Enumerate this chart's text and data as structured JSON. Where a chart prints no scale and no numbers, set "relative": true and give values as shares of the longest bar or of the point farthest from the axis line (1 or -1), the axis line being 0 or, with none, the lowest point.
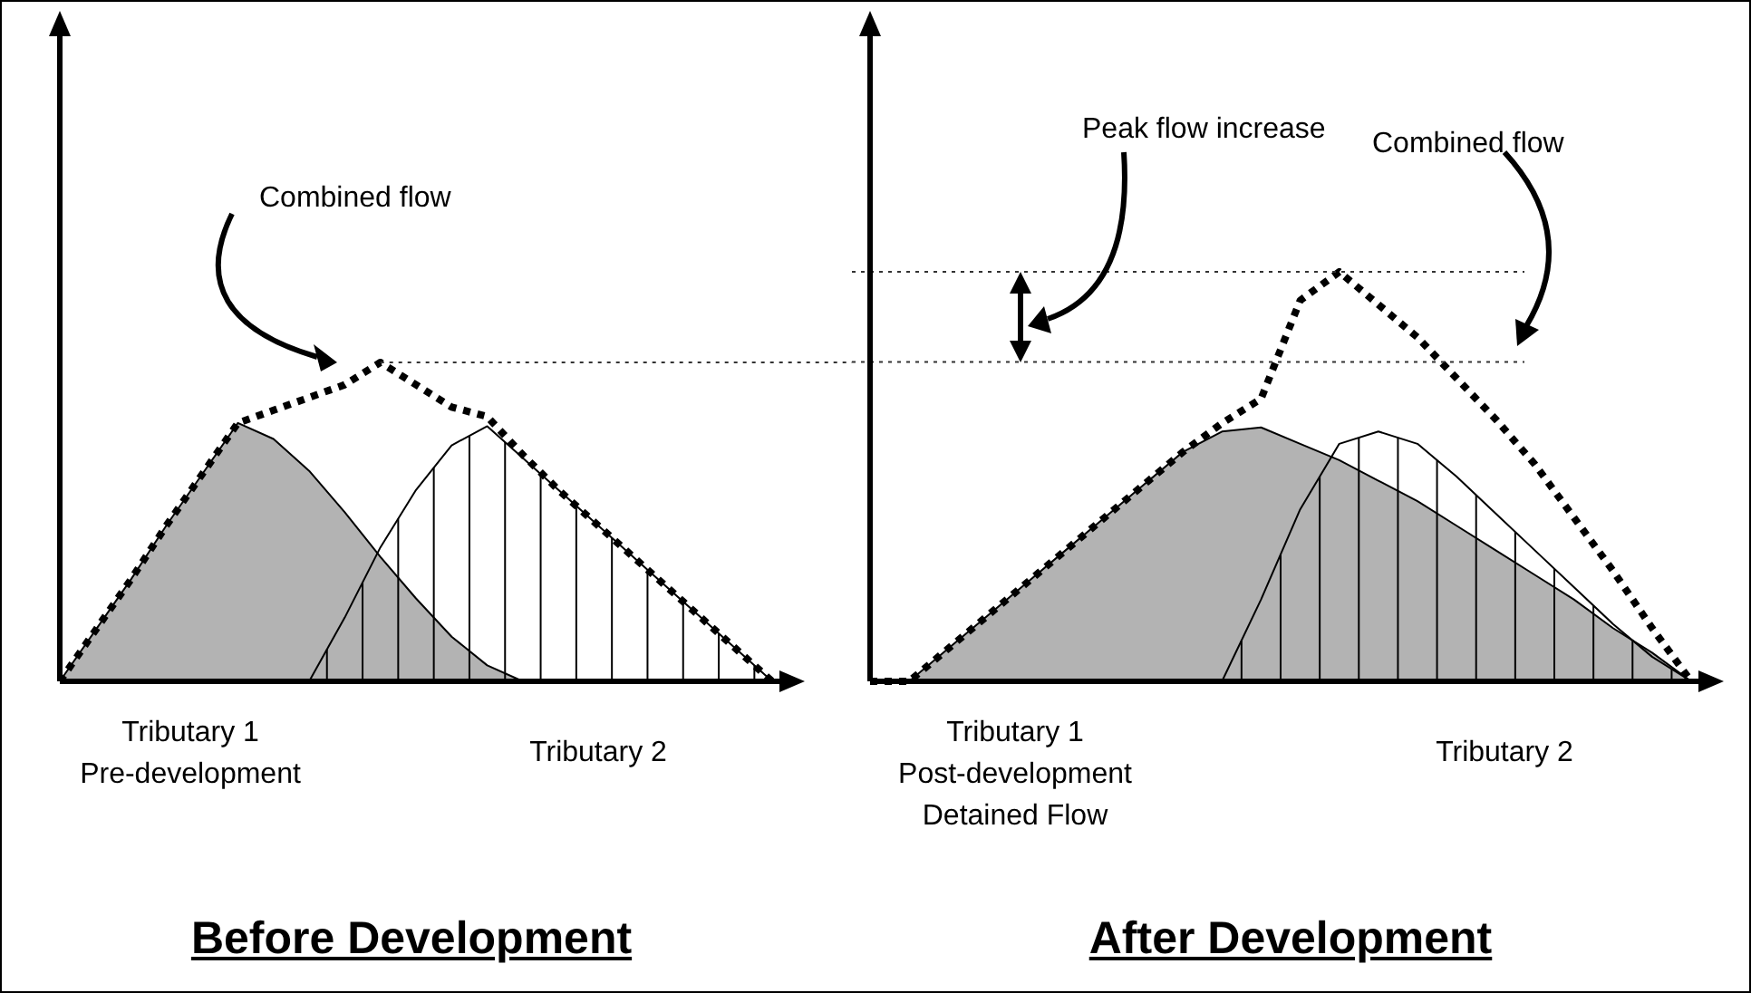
{
  "chart_data": [
    {
      "type": "area",
      "title": "Before Development",
      "relative": true,
      "categories": [
        null,
        null,
        null,
        null,
        null,
        null,
        null,
        null,
        null,
        null,
        null,
        null,
        null,
        null,
        null,
        null,
        null,
        null,
        null,
        null,
        null
      ],
      "series": [
        {
          "name": "Tributary 1\nPre-development",
          "type": "area",
          "color": "#b3b3b3",
          "values": [
            0,
            0.16,
            0.32,
            0.49,
            0.65,
            0.81,
            0.76,
            0.66,
            0.53,
            0.39,
            0.26,
            0.14,
            0.05,
            0,
            null,
            null,
            null,
            null,
            null,
            null,
            null
          ]
        },
        {
          "name": "Tributary 2",
          "type": "area",
          "color": "#ffffff",
          "values": [
            null,
            null,
            null,
            null,
            null,
            null,
            null,
            0,
            0.2,
            0.42,
            0.6,
            0.74,
            0.8,
            0.7,
            0.6,
            0.5,
            0.4,
            0.3,
            0.2,
            0.1,
            0
          ]
        },
        {
          "name": "Combined flow",
          "type": "line",
          "color": "#000000",
          "line_style": "dotted",
          "values": [
            0,
            0.16,
            0.32,
            0.49,
            0.65,
            0.81,
            0.85,
            0.89,
            0.93,
            1,
            0.93,
            0.86,
            0.83,
            0.71,
            0.6,
            0.5,
            0.4,
            0.3,
            0.2,
            0.1,
            0
          ]
        }
      ],
      "ref_lines": [
        {
          "axis": "y",
          "value": 1
        }
      ]
    },
    {
      "type": "area",
      "title": "After Development",
      "relative": true,
      "categories": [
        null,
        null,
        null,
        null,
        null,
        null,
        null,
        null,
        null,
        null,
        null,
        null,
        null,
        null,
        null,
        null,
        null,
        null,
        null,
        null,
        null,
        null
      ],
      "series": [
        {
          "name": "Tributary 1\nPost-development\nDetained Flow",
          "type": "area",
          "color": "#b3b3b3",
          "values": [
            0,
            0,
            0.08,
            0.16,
            0.24,
            0.32,
            0.4,
            0.48,
            0.56,
            0.61,
            0.62,
            0.58,
            0.54,
            0.49,
            0.44,
            0.38,
            0.32,
            0.26,
            0.2,
            0.13,
            0.07,
            0
          ]
        },
        {
          "name": "Tributary 2",
          "type": "area",
          "color": "#ffffff",
          "values": [
            null,
            null,
            null,
            null,
            null,
            null,
            null,
            null,
            null,
            0,
            0.2,
            0.42,
            0.58,
            0.61,
            0.58,
            0.5,
            0.41,
            0.32,
            0.23,
            0.14,
            0.06,
            0
          ]
        },
        {
          "name": "Combined flow",
          "type": "line",
          "color": "#000000",
          "line_style": "dotted",
          "values": [
            0,
            0,
            0.08,
            0.16,
            0.24,
            0.32,
            0.4,
            0.48,
            0.56,
            0.63,
            0.69,
            0.93,
            1,
            0.92,
            0.84,
            0.74,
            0.64,
            0.53,
            0.4,
            0.27,
            0.13,
            0
          ]
        }
      ],
      "ref_lines": [
        {
          "axis": "y",
          "value": 1
        },
        {
          "axis": "y",
          "value": 0.78
        }
      ],
      "annotations": [
        "Peak flow increase"
      ]
    }
  ]
}
